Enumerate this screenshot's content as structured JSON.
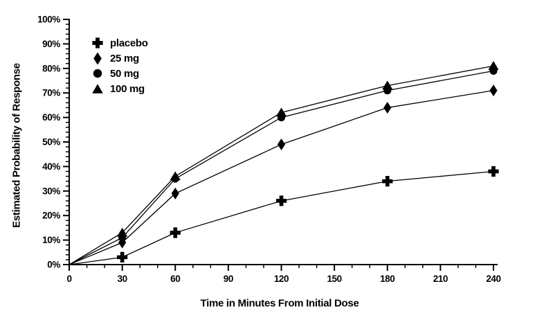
{
  "chart_data": {
    "type": "line",
    "title": "",
    "xlabel": "Time in Minutes From Initial Dose",
    "ylabel": "Estimated Probability of Response",
    "x": [
      0,
      30,
      60,
      120,
      180,
      240
    ],
    "series": [
      {
        "name": "placebo",
        "marker": "plus",
        "values": [
          0,
          3,
          13,
          26,
          34,
          38
        ]
      },
      {
        "name": "25 mg",
        "marker": "diamond",
        "values": [
          0,
          9,
          29,
          49,
          64,
          71
        ]
      },
      {
        "name": "50 mg",
        "marker": "circle",
        "values": [
          0,
          11,
          35,
          60,
          71,
          79
        ]
      },
      {
        "name": "100 mg",
        "marker": "triangle",
        "values": [
          0,
          13,
          36,
          62,
          73,
          81
        ]
      }
    ],
    "xlim": [
      0,
      240
    ],
    "ylim": [
      0,
      100
    ],
    "x_ticks": {
      "major": [
        0,
        30,
        60,
        90,
        120,
        150,
        180,
        210,
        240
      ],
      "labels": [
        "0",
        "30",
        "60",
        "90",
        "120",
        "150",
        "180",
        "210",
        "240"
      ],
      "minor_step": 10
    },
    "y_ticks": {
      "major_step": 10,
      "minor_step": 2,
      "labels": [
        "0%",
        "10%",
        "20%",
        "30%",
        "40%",
        "50%",
        "60%",
        "70%",
        "80%",
        "90%",
        "100%"
      ]
    },
    "grid": false,
    "legend_position": "top-left",
    "marker_at_origin": false,
    "colors": {
      "foreground": "#000000",
      "background": "#ffffff"
    }
  }
}
